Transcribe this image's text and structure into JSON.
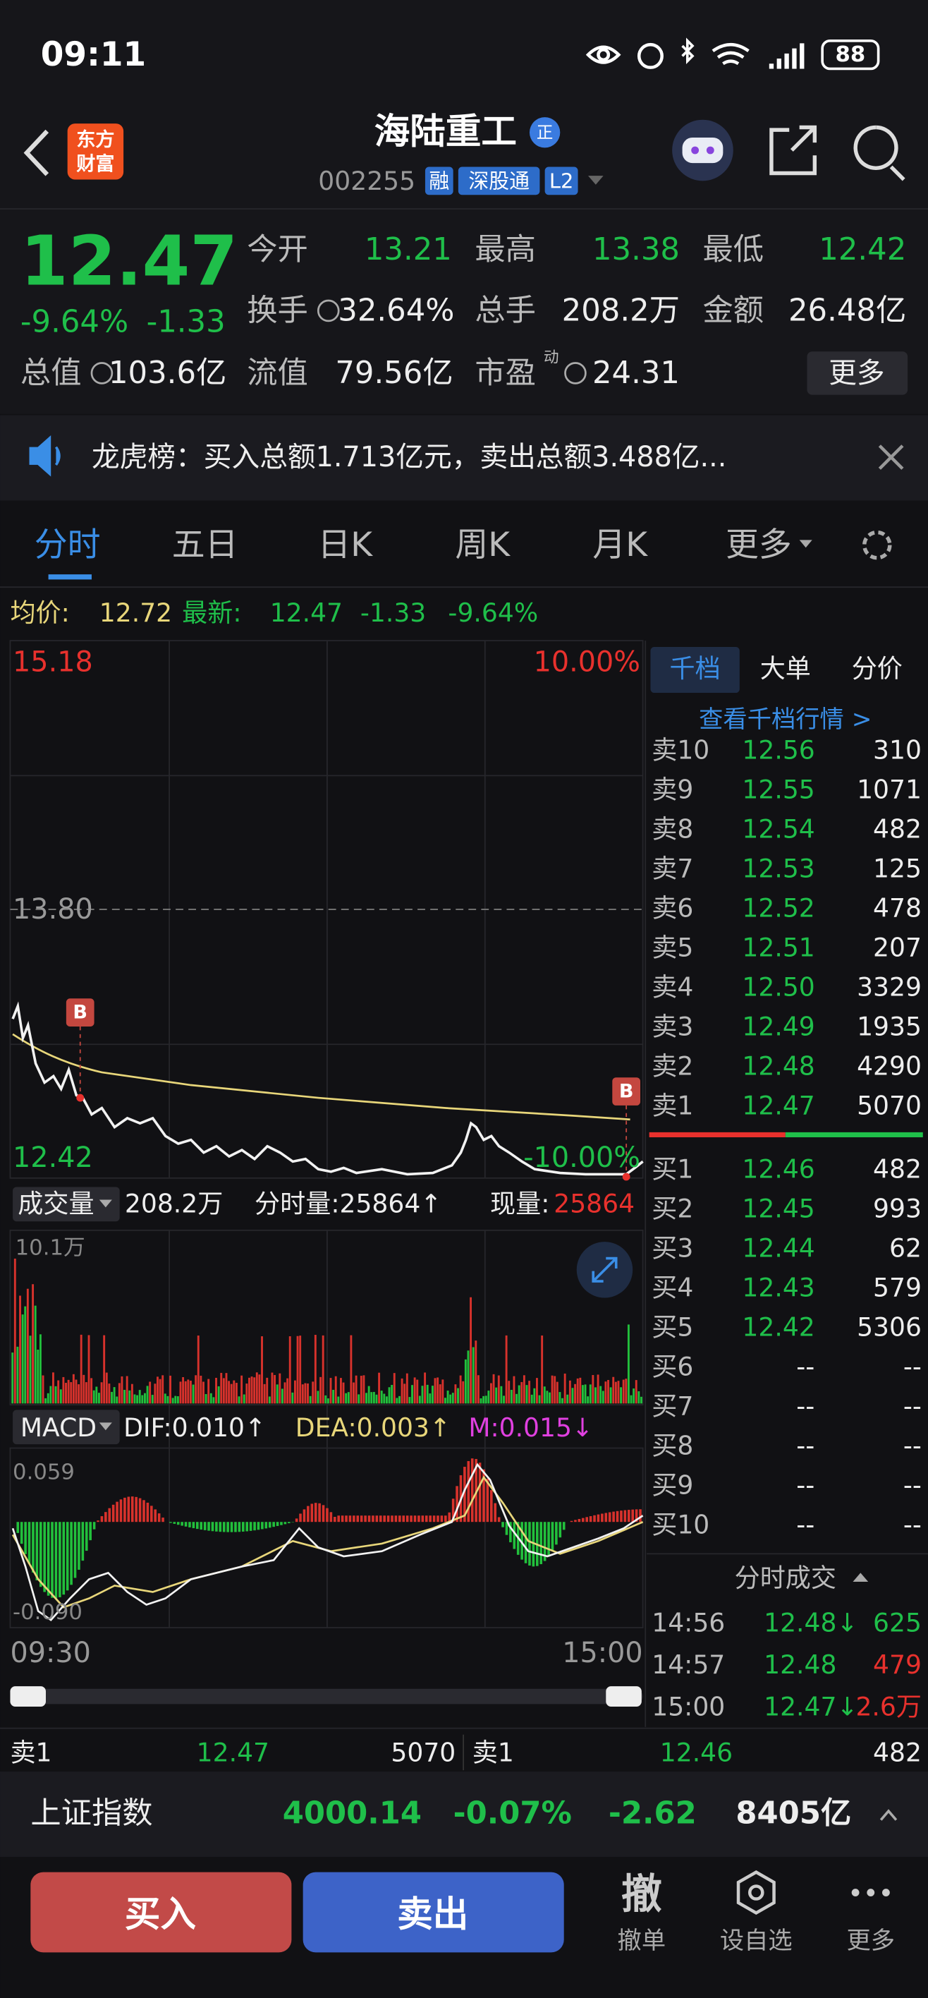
{
  "status": {
    "time": "09:11",
    "battery": "88"
  },
  "header": {
    "logo": [
      "东方",
      "财富"
    ],
    "title": "海陆重工",
    "badge": "正",
    "code": "002255",
    "tags": [
      "融",
      "深股通",
      "L2"
    ]
  },
  "quote": {
    "price": "12.47",
    "change_pct": "-9.64%",
    "change": "-1.33",
    "fields": [
      {
        "label": "今开",
        "value": "13.21"
      },
      {
        "label": "最高",
        "value": "13.38"
      },
      {
        "label": "最低",
        "value": "12.42"
      },
      {
        "label": "换手",
        "value": "32.64%"
      },
      {
        "label": "总手",
        "value": "208.2万"
      },
      {
        "label": "金额",
        "value": "26.48亿"
      },
      {
        "label": "总值",
        "value": "103.6亿"
      },
      {
        "label": "流值",
        "value": "79.56亿"
      },
      {
        "label": "市盈",
        "value": "24.31"
      }
    ],
    "pe_note": "动",
    "more": "更多"
  },
  "notice": "龙虎榜：买入总额1.713亿元，卖出总额3.488亿...",
  "tabs": [
    "分时",
    "五日",
    "日K",
    "周K",
    "月K",
    "更多"
  ],
  "info_bar": {
    "avg_label": "均价:",
    "avg": "12.72",
    "latest_label": "最新:",
    "latest": "12.47",
    "change": "-1.33",
    "change_pct": "-9.64%"
  },
  "price_chart": {
    "top_price": "15.18",
    "top_pct": "10.00%",
    "mid_price": "13.80",
    "bottom_price": "12.42",
    "bottom_pct": "-10.00%",
    "markers": [
      "B",
      "B"
    ]
  },
  "volume_chart": {
    "selector": "成交量",
    "total": "208.2万",
    "tick_volume": "分时量:25864↑",
    "current_label": "现量:",
    "current": "25864",
    "max": "10.1万"
  },
  "macd_chart": {
    "selector": "MACD",
    "dif": "DIF:0.010↑",
    "dea": "DEA:0.003↑",
    "m": "M:0.015↓",
    "top": "0.059",
    "bottom": "-0.090",
    "start_time": "09:30",
    "end_time": "15:00"
  },
  "order_book": {
    "tabs": [
      "千档",
      "大单",
      "分价"
    ],
    "link": "查看千档行情 >",
    "asks": [
      {
        "label": "卖10",
        "price": "12.56",
        "volume": "310"
      },
      {
        "label": "卖9",
        "price": "12.55",
        "volume": "1071"
      },
      {
        "label": "卖8",
        "price": "12.54",
        "volume": "482"
      },
      {
        "label": "卖7",
        "price": "12.53",
        "volume": "125"
      },
      {
        "label": "卖6",
        "price": "12.52",
        "volume": "478"
      },
      {
        "label": "卖5",
        "price": "12.51",
        "volume": "207"
      },
      {
        "label": "卖4",
        "price": "12.50",
        "volume": "3329"
      },
      {
        "label": "卖3",
        "price": "12.49",
        "volume": "1935"
      },
      {
        "label": "卖2",
        "price": "12.48",
        "volume": "4290"
      },
      {
        "label": "卖1",
        "price": "12.47",
        "volume": "5070"
      }
    ],
    "bids": [
      {
        "label": "买1",
        "price": "12.46",
        "volume": "482"
      },
      {
        "label": "买2",
        "price": "12.45",
        "volume": "993"
      },
      {
        "label": "买3",
        "price": "12.44",
        "volume": "62"
      },
      {
        "label": "买4",
        "price": "12.43",
        "volume": "579"
      },
      {
        "label": "买5",
        "price": "12.42",
        "volume": "5306"
      },
      {
        "label": "买6",
        "price": "--",
        "volume": "--"
      },
      {
        "label": "买7",
        "price": "--",
        "volume": "--"
      },
      {
        "label": "买8",
        "price": "--",
        "volume": "--"
      },
      {
        "label": "买9",
        "price": "--",
        "volume": "--"
      },
      {
        "label": "买10",
        "price": "--",
        "volume": "--"
      }
    ],
    "trades_title": "分时成交",
    "trades": [
      {
        "time": "14:56",
        "price": "12.48↓",
        "volume": "625"
      },
      {
        "time": "14:57",
        "price": "12.48",
        "volume": "479"
      },
      {
        "time": "15:00",
        "price": "12.47↓",
        "volume": "2.6万"
      }
    ]
  },
  "bottom_quote": [
    {
      "label": "卖1",
      "price": "12.47",
      "volume": "5070"
    },
    {
      "label": "卖1",
      "price": "12.46",
      "volume": "482"
    }
  ],
  "index_bar": {
    "name": "上证指数",
    "value": "4000.14",
    "change_pct": "-0.07%",
    "change": "-2.62",
    "turnover": "8405亿"
  },
  "actions": {
    "buy": "买入",
    "sell": "卖出",
    "cancel_icon": "撤",
    "items": [
      {
        "label": "撤单"
      },
      {
        "label": "设自选"
      },
      {
        "label": "更多"
      }
    ]
  }
}
